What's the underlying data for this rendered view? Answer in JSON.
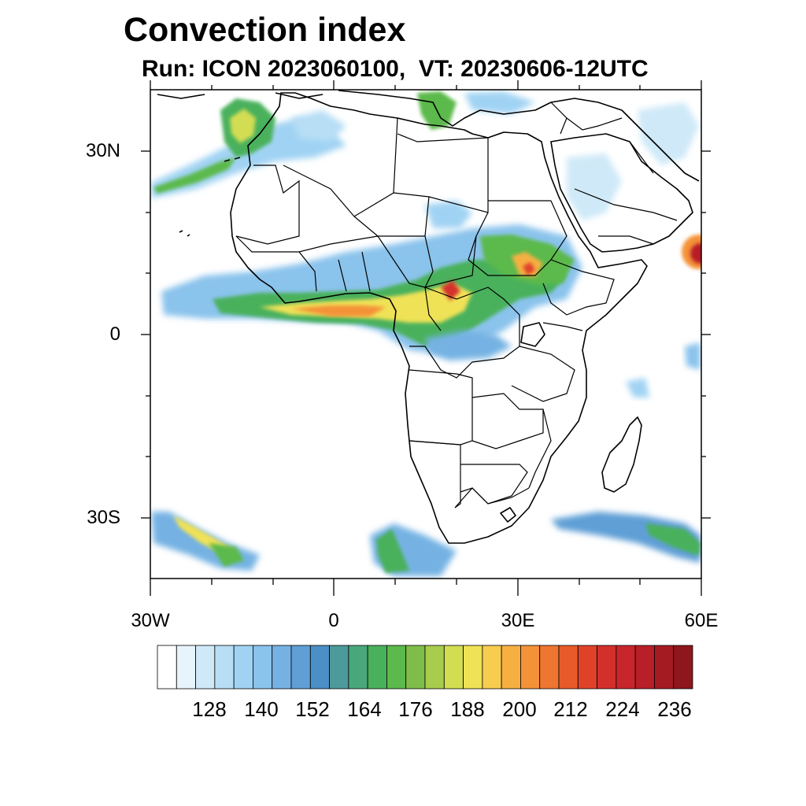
{
  "title": "Convection index",
  "subtitle": "Run: ICON 2023060100,  VT: 20230606-12UTC",
  "map": {
    "projection": "cylindrical-equidistant",
    "lon_range": [
      -30,
      60
    ],
    "lat_range": [
      -40,
      40
    ],
    "y_ticks": [
      {
        "label": "30N",
        "lat": 30
      },
      {
        "label": "0",
        "lat": 0
      },
      {
        "label": "30S",
        "lat": -30
      }
    ],
    "x_ticks": [
      {
        "label": "30W",
        "lon": -30
      },
      {
        "label": "0",
        "lon": 0
      },
      {
        "label": "30E",
        "lon": 30
      },
      {
        "label": "60E",
        "lon": 60
      }
    ],
    "features": [
      "coastlines",
      "country-borders",
      "convection-index-shading"
    ]
  },
  "colorbar": {
    "labels": [
      "128",
      "140",
      "152",
      "164",
      "176",
      "188",
      "200",
      "212",
      "224",
      "236"
    ],
    "colors": [
      "#ffffff",
      "#e8f4fc",
      "#cfe9f8",
      "#b7def5",
      "#a0d3f3",
      "#8ac3ec",
      "#75b2e3",
      "#5f9fd6",
      "#4a8fc6",
      "#4d9a9a",
      "#4aa77c",
      "#49b15c",
      "#5cb94c",
      "#7ebd4a",
      "#a8cc4c",
      "#d2dd52",
      "#f0e256",
      "#f8cc4e",
      "#f6b042",
      "#f49238",
      "#ef7630",
      "#e85a2a",
      "#e04229",
      "#d4302b",
      "#c8262c",
      "#b81f28",
      "#a51b22",
      "#8e161c"
    ]
  }
}
